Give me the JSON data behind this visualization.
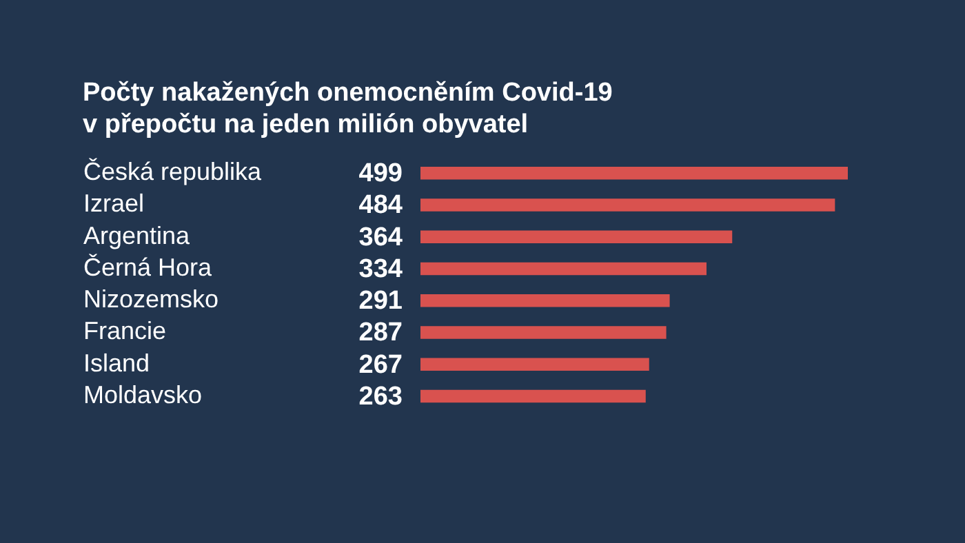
{
  "chart_data": {
    "type": "bar",
    "orientation": "horizontal",
    "title": "Počty nakažených onemocněním Covid-19\nv přepočtu na jeden milión obyvatel",
    "categories": [
      "Česká republika",
      "Izrael",
      "Argentina",
      "Černá Hora",
      "Nizozemsko",
      "Francie",
      "Island",
      "Moldavsko"
    ],
    "values": [
      499,
      484,
      364,
      334,
      291,
      287,
      267,
      263
    ],
    "color": "#d9524f",
    "data_labels": true
  }
}
